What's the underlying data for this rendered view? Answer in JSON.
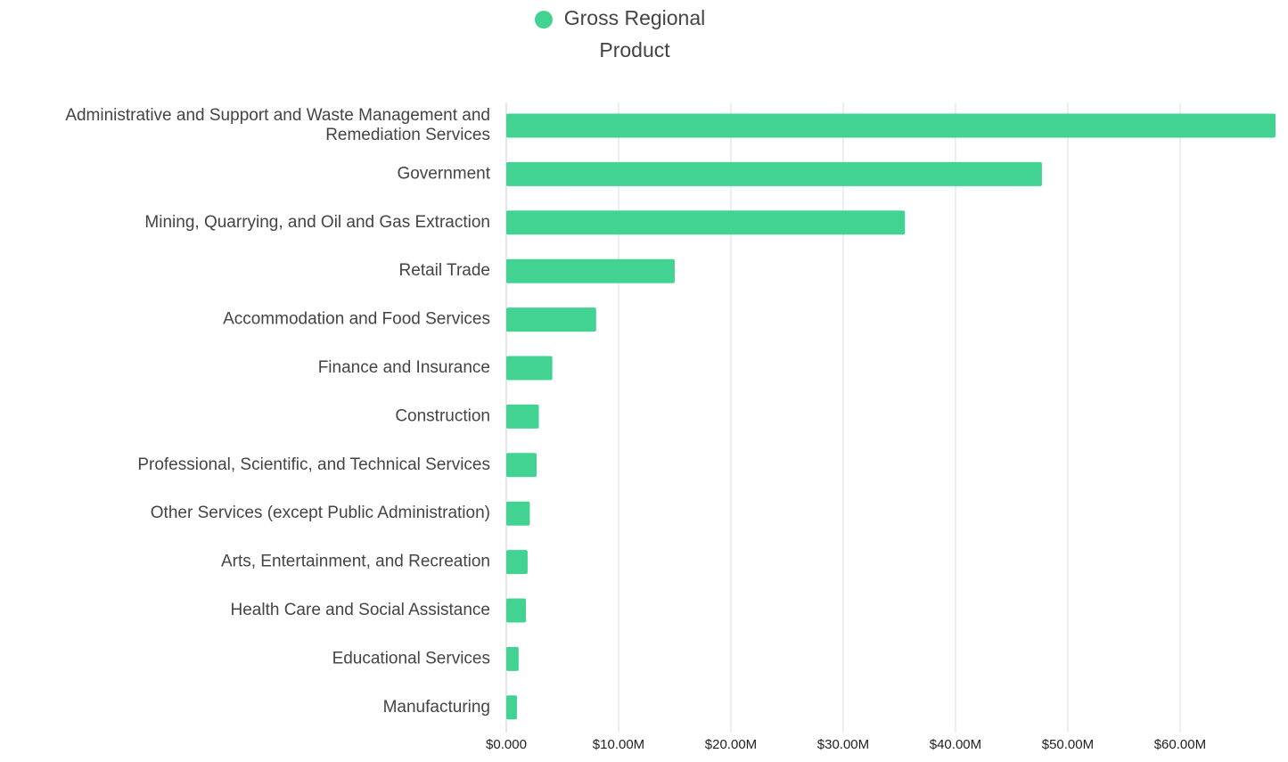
{
  "chart_data": {
    "type": "bar",
    "orientation": "horizontal",
    "series": [
      {
        "name": "Gross Regional Product",
        "color": "#42d392",
        "values": [
          68500000,
          47700000,
          35500000,
          15000000,
          8000000,
          4100000,
          2900000,
          2700000,
          2100000,
          1900000,
          1750000,
          1100000,
          950000
        ]
      }
    ],
    "categories": [
      "Administrative and Support and Waste Management and Remediation Services",
      "Government",
      "Mining, Quarrying, and Oil and Gas Extraction",
      "Retail Trade",
      "Accommodation and Food Services",
      "Finance and Insurance",
      "Construction",
      "Professional, Scientific, and Technical Services",
      "Other Services (except Public Administration)",
      "Arts, Entertainment, and Recreation",
      "Health Care and Social Assistance",
      "Educational Services",
      "Manufacturing"
    ],
    "xlim": [
      0,
      68500000
    ],
    "xticks": [
      {
        "value": 0,
        "label": "$0.000"
      },
      {
        "value": 10000000,
        "label": "$10.00M"
      },
      {
        "value": 20000000,
        "label": "$20.00M"
      },
      {
        "value": 30000000,
        "label": "$30.00M"
      },
      {
        "value": 40000000,
        "label": "$40.00M"
      },
      {
        "value": 50000000,
        "label": "$50.00M"
      },
      {
        "value": 60000000,
        "label": "$60.00M"
      }
    ],
    "grid": true,
    "legend": "top"
  }
}
